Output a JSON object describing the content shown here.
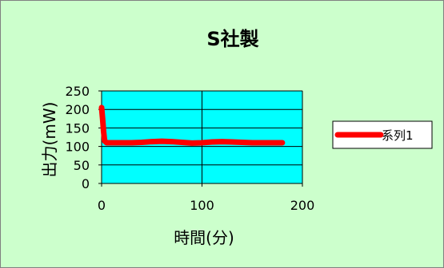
{
  "chart_data": {
    "type": "line",
    "title": "S社製",
    "xlabel": "時間(分)",
    "ylabel": "出力(mW)",
    "xlim": [
      0,
      200
    ],
    "ylim": [
      0,
      250
    ],
    "xticks": [
      0,
      100,
      200
    ],
    "yticks": [
      0,
      50,
      100,
      150,
      200,
      250
    ],
    "grid": true,
    "legend_position": "right",
    "plot_background": "#00ffff",
    "chart_background": "#ccffcc",
    "series": [
      {
        "name": "系列1",
        "color": "#ff0000",
        "x": [
          0,
          1,
          2,
          3,
          5,
          10,
          20,
          30,
          40,
          50,
          60,
          70,
          80,
          90,
          100,
          110,
          120,
          130,
          140,
          150,
          160,
          170,
          180
        ],
        "y": [
          205,
          175,
          140,
          115,
          110,
          110,
          110,
          110,
          111,
          113,
          114,
          113,
          111,
          109,
          110,
          112,
          113,
          112,
          111,
          110,
          110,
          110,
          110
        ]
      }
    ]
  }
}
